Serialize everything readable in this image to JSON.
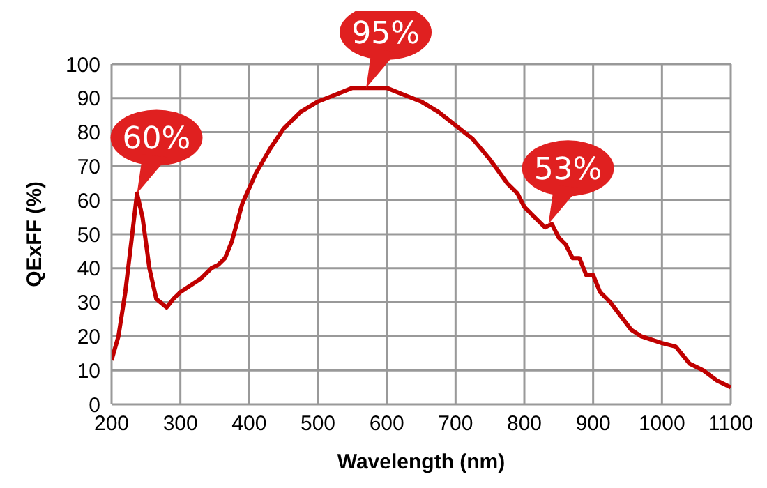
{
  "chart_data": {
    "type": "line",
    "xlabel": "Wavelength (nm)",
    "ylabel": "QExFF (%)",
    "x": [
      200,
      210,
      220,
      230,
      237,
      245,
      255,
      265,
      280,
      290,
      300,
      315,
      330,
      345,
      355,
      365,
      375,
      390,
      410,
      430,
      450,
      475,
      500,
      525,
      550,
      565,
      580,
      600,
      625,
      650,
      675,
      700,
      725,
      750,
      775,
      790,
      800,
      815,
      830,
      840,
      850,
      860,
      870,
      880,
      890,
      900,
      910,
      925,
      940,
      955,
      970,
      1000,
      1020,
      1040,
      1060,
      1080,
      1100
    ],
    "series": [
      {
        "color": "#c00000",
        "values": [
          13,
          20,
          33,
          50,
          62,
          55,
          40,
          31,
          28.5,
          31,
          33,
          35,
          37,
          40,
          41,
          43,
          48,
          59,
          68,
          75,
          81,
          86,
          89,
          91,
          93,
          93,
          93,
          93,
          91,
          89,
          86,
          82,
          78,
          72,
          65,
          62,
          58,
          55,
          52,
          53,
          49,
          47,
          43,
          43,
          38,
          38,
          33,
          30,
          26,
          22,
          20,
          18,
          17,
          12,
          10,
          7,
          5
        ]
      }
    ],
    "xlim": [
      200,
      1100
    ],
    "xticks": [
      200,
      300,
      400,
      500,
      600,
      700,
      800,
      900,
      1000,
      1100
    ],
    "ylim": [
      0,
      100
    ],
    "yticks": [
      0,
      10,
      20,
      30,
      40,
      50,
      60,
      70,
      80,
      90,
      100
    ],
    "grid": true,
    "marker": "none",
    "line_style": "solid",
    "annotations": [
      {
        "text": "60%",
        "x": 237,
        "y": 62
      },
      {
        "text": "95%",
        "x": 570,
        "y": 93
      },
      {
        "text": "53%",
        "x": 835,
        "y": 53
      }
    ]
  }
}
